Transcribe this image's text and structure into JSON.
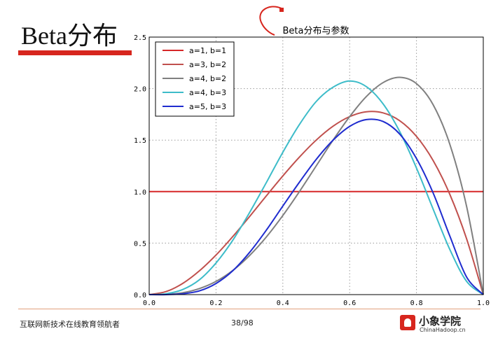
{
  "slide": {
    "title": "Beta分布",
    "footer_left": "互联网新技术在线教育领航者",
    "page": "38/98",
    "logo_name": "小象学院",
    "logo_sub": "ChinaHadoop.cn"
  },
  "colors": {
    "accent_bar": "#d7261e",
    "footer_line": "#e2a07c"
  },
  "chart_data": {
    "type": "line",
    "title": "Beta分布与参数",
    "xlabel": "",
    "ylabel": "",
    "xlim": [
      0.0,
      1.0
    ],
    "ylim": [
      0.0,
      2.5
    ],
    "xticks": [
      "0.0",
      "0.2",
      "0.4",
      "0.6",
      "0.8",
      "1.0"
    ],
    "yticks": [
      "0.0",
      "0.5",
      "1.0",
      "1.5",
      "2.0",
      "2.5"
    ],
    "grid": true,
    "legend_position": "top-left",
    "x": [
      0.0,
      0.05,
      0.1,
      0.15,
      0.2,
      0.25,
      0.3,
      0.35,
      0.4,
      0.45,
      0.5,
      0.55,
      0.6,
      0.65,
      0.7,
      0.75,
      0.8,
      0.85,
      0.9,
      0.95,
      1.0
    ],
    "series": [
      {
        "name": "a=1, b=1",
        "color": "#d62728",
        "values": [
          1.0,
          1.0,
          1.0,
          1.0,
          1.0,
          1.0,
          1.0,
          1.0,
          1.0,
          1.0,
          1.0,
          1.0,
          1.0,
          1.0,
          1.0,
          1.0,
          1.0,
          1.0,
          1.0,
          1.0,
          1.0
        ]
      },
      {
        "name": "a=3, b=2",
        "color": "#c0504d",
        "values": [
          0.0,
          0.029,
          0.108,
          0.23,
          0.384,
          0.563,
          0.756,
          0.956,
          1.152,
          1.336,
          1.5,
          1.634,
          1.728,
          1.775,
          1.764,
          1.688,
          1.536,
          1.301,
          0.972,
          0.542,
          0.0
        ]
      },
      {
        "name": "a=4, b=2",
        "color": "#808080",
        "values": [
          0.0,
          0.002,
          0.018,
          0.058,
          0.128,
          0.234,
          0.378,
          0.557,
          0.768,
          1.002,
          1.25,
          1.498,
          1.728,
          1.923,
          2.058,
          2.109,
          2.048,
          1.843,
          1.458,
          0.857,
          0.0
        ]
      },
      {
        "name": "a=4, b=3",
        "color": "#3dbcc9",
        "values": [
          0.0,
          0.008,
          0.049,
          0.143,
          0.307,
          0.527,
          0.794,
          1.084,
          1.382,
          1.653,
          1.875,
          2.013,
          2.074,
          2.019,
          1.852,
          1.582,
          1.229,
          0.829,
          0.437,
          0.129,
          0.0
        ]
      },
      {
        "name": "a=5, b=3",
        "color": "#1f2ccf",
        "values": [
          0.0,
          0.0,
          0.008,
          0.036,
          0.108,
          0.231,
          0.408,
          0.623,
          0.86,
          1.093,
          1.313,
          1.498,
          1.633,
          1.699,
          1.681,
          1.558,
          1.321,
          0.986,
          0.567,
          0.171,
          0.0
        ]
      }
    ]
  }
}
